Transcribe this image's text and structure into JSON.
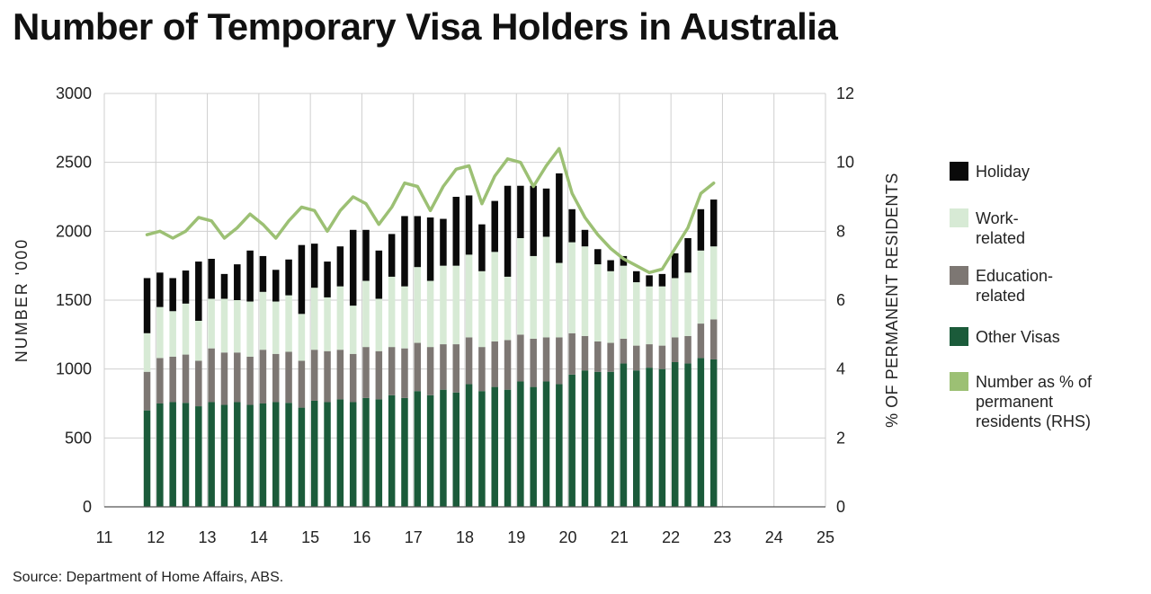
{
  "title": "Number of Temporary Visa Holders in Australia",
  "source": "Source: Department of Home Affairs, ABS.",
  "colors": {
    "holiday": "#0a0a0a",
    "work": "#d7ead5",
    "education": "#7d7773",
    "other": "#1b5b3a",
    "line": "#9cc074",
    "grid": "#cfcfcf"
  },
  "legend": {
    "holiday": "Holiday",
    "work": "Work-related",
    "education": "Education-related",
    "other": "Other Visas",
    "line": "Number as % of permanent residents (RHS)"
  },
  "chart_data": {
    "type": "bar",
    "stacked": true,
    "ylabel": "NUMBER '000",
    "y2label": "% OF PERMANENT RESIDENTS",
    "xlim": [
      11,
      25
    ],
    "ylim": [
      0,
      3000
    ],
    "y2lim": [
      0,
      12
    ],
    "xticks": [
      "11",
      "12",
      "13",
      "14",
      "15",
      "16",
      "17",
      "18",
      "19",
      "20",
      "21",
      "22",
      "23",
      "24",
      "25"
    ],
    "yticks": [
      "0",
      "500",
      "1000",
      "1500",
      "2000",
      "2500",
      "3000"
    ],
    "y2ticks": [
      "0",
      "2",
      "4",
      "6",
      "8",
      "10",
      "12"
    ],
    "grid": true,
    "legend_position": "right",
    "x": [
      11.83,
      12.08,
      12.33,
      12.58,
      12.83,
      13.08,
      13.33,
      13.58,
      13.83,
      14.08,
      14.33,
      14.58,
      14.83,
      15.08,
      15.33,
      15.58,
      15.83,
      16.08,
      16.33,
      16.58,
      16.83,
      17.08,
      17.33,
      17.58,
      17.83,
      18.08,
      18.33,
      18.58,
      18.83,
      19.08,
      19.33,
      19.58,
      19.83,
      20.08,
      20.33,
      20.58,
      20.83,
      21.08,
      21.33,
      21.58,
      21.83,
      22.08,
      22.33,
      22.58,
      22.83
    ],
    "series": [
      {
        "name": "Other Visas",
        "values": [
          700,
          750,
          760,
          755,
          730,
          760,
          740,
          760,
          740,
          750,
          760,
          755,
          720,
          770,
          760,
          780,
          760,
          790,
          780,
          810,
          790,
          840,
          810,
          850,
          830,
          890,
          840,
          870,
          850,
          910,
          870,
          910,
          890,
          960,
          990,
          980,
          980,
          1040,
          990,
          1010,
          1000,
          1050,
          1040,
          1080,
          1070
        ]
      },
      {
        "name": "Education-related",
        "values": [
          280,
          330,
          330,
          350,
          330,
          390,
          380,
          360,
          350,
          390,
          350,
          370,
          340,
          370,
          370,
          360,
          350,
          370,
          350,
          350,
          360,
          350,
          350,
          330,
          350,
          340,
          320,
          330,
          360,
          340,
          350,
          320,
          340,
          300,
          250,
          220,
          210,
          180,
          180,
          170,
          170,
          180,
          200,
          250,
          290
        ]
      },
      {
        "name": "Work-related",
        "values": [
          280,
          370,
          330,
          370,
          290,
          360,
          390,
          380,
          400,
          420,
          380,
          410,
          340,
          450,
          390,
          460,
          350,
          480,
          380,
          510,
          450,
          550,
          480,
          570,
          570,
          600,
          550,
          650,
          460,
          700,
          600,
          730,
          540,
          660,
          650,
          560,
          520,
          530,
          460,
          420,
          430,
          430,
          460,
          530,
          530
        ]
      },
      {
        "name": "Holiday",
        "values": [
          400,
          250,
          240,
          240,
          430,
          290,
          180,
          260,
          370,
          260,
          230,
          260,
          500,
          320,
          260,
          290,
          550,
          370,
          350,
          310,
          510,
          370,
          460,
          340,
          500,
          430,
          340,
          370,
          660,
          380,
          510,
          350,
          650,
          240,
          120,
          110,
          80,
          70,
          80,
          80,
          90,
          180,
          250,
          300,
          340
        ]
      }
    ],
    "line": {
      "name": "Number as % of permanent residents (RHS)",
      "values": [
        7.9,
        8.0,
        7.8,
        8.0,
        8.4,
        8.3,
        7.8,
        8.1,
        8.5,
        8.2,
        7.8,
        8.3,
        8.7,
        8.6,
        8.0,
        8.6,
        9.0,
        8.8,
        8.2,
        8.7,
        9.4,
        9.3,
        8.6,
        9.3,
        9.8,
        9.9,
        8.8,
        9.6,
        10.1,
        10.0,
        9.3,
        9.9,
        10.4,
        9.1,
        8.4,
        7.9,
        7.5,
        7.2,
        7.0,
        6.8,
        6.9,
        7.5,
        8.1,
        9.1,
        9.4
      ]
    }
  }
}
